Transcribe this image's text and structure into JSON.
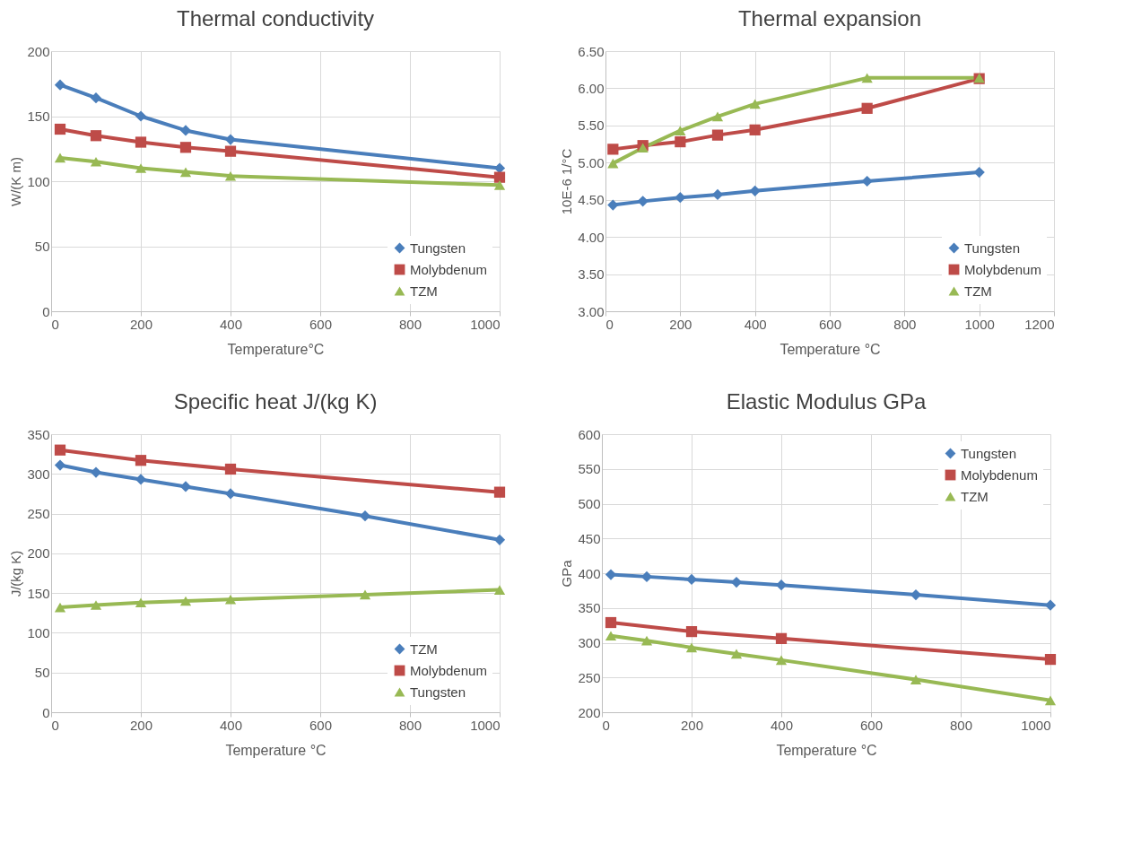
{
  "chart_data": [
    {
      "type": "line",
      "title": "Thermal conductivity",
      "xlabel": "Temperature°C",
      "ylabel": "W/(K m)",
      "xlim": [
        0,
        1000
      ],
      "xticks": [
        0,
        200,
        400,
        600,
        800,
        1000
      ],
      "ylim": [
        0,
        200
      ],
      "yticks": [
        0,
        50,
        100,
        150,
        200
      ],
      "grid": true,
      "legend": "bottom right",
      "line_style": "solid",
      "series": [
        {
          "name": "Tungsten",
          "color": "#4a7ebb",
          "marker": "diamond",
          "x": [
            20,
            100,
            200,
            300,
            400,
            1000
          ],
          "values": [
            174,
            164,
            150,
            139,
            132,
            110
          ]
        },
        {
          "name": "Molybdenum",
          "color": "#be4b48",
          "marker": "square",
          "x": [
            20,
            100,
            200,
            300,
            400,
            1000
          ],
          "values": [
            140,
            135,
            130,
            126,
            123,
            103
          ]
        },
        {
          "name": "TZM",
          "color": "#98b954",
          "marker": "triangle",
          "x": [
            20,
            100,
            200,
            300,
            400,
            1000
          ],
          "values": [
            118,
            115,
            110,
            107,
            104,
            97
          ]
        }
      ]
    },
    {
      "type": "line",
      "title": "Thermal expansion",
      "xlabel": "Temperature °C",
      "ylabel": "10E-6  1/°C",
      "xlim": [
        0,
        1200
      ],
      "xticks": [
        0,
        200,
        400,
        600,
        800,
        1000,
        1200
      ],
      "ylim": [
        3,
        6.5
      ],
      "yticks": [
        {
          "value": 3,
          "label": "3.00"
        },
        {
          "value": 3.5,
          "label": "3.50"
        },
        {
          "value": 4,
          "label": "4.00"
        },
        {
          "value": 4.5,
          "label": "4.50"
        },
        {
          "value": 5,
          "label": "5.00"
        },
        {
          "value": 5.5,
          "label": "5.50"
        },
        {
          "value": 6,
          "label": "6.00"
        },
        {
          "value": 6.5,
          "label": "6.50"
        }
      ],
      "grid": true,
      "legend": "bottom right",
      "line_style": "solid",
      "series": [
        {
          "name": "Tungsten",
          "color": "#4a7ebb",
          "marker": "diamond",
          "x": [
            20,
            100,
            200,
            300,
            400,
            700,
            1000
          ],
          "values": [
            4.43,
            4.48,
            4.53,
            4.57,
            4.62,
            4.75,
            4.87
          ]
        },
        {
          "name": "Molybdenum",
          "color": "#be4b48",
          "marker": "square",
          "x": [
            20,
            100,
            200,
            300,
            400,
            700,
            1000
          ],
          "values": [
            5.18,
            5.23,
            5.28,
            5.37,
            5.44,
            5.73,
            6.13
          ]
        },
        {
          "name": "TZM",
          "color": "#98b954",
          "marker": "triangle",
          "x": [
            20,
            100,
            200,
            300,
            400,
            700,
            1000
          ],
          "values": [
            4.99,
            5.2,
            5.43,
            5.62,
            5.79,
            6.14,
            6.14
          ]
        }
      ]
    },
    {
      "type": "line",
      "title": "Specific heat J/(kg K)",
      "xlabel": "Temperature °C",
      "ylabel": "J/(kg K)",
      "xlim": [
        0,
        1000
      ],
      "xticks": [
        0,
        200,
        400,
        600,
        800,
        1000
      ],
      "ylim": [
        0,
        350
      ],
      "yticks": [
        0,
        50,
        100,
        150,
        200,
        250,
        300,
        350
      ],
      "grid": true,
      "legend": "bottom right",
      "line_style": "solid",
      "series": [
        {
          "name": "TZM",
          "color": "#4a7ebb",
          "marker": "diamond",
          "x": [
            20,
            100,
            200,
            300,
            400,
            700,
            1000
          ],
          "values": [
            311,
            302,
            293,
            284,
            275,
            247,
            217
          ]
        },
        {
          "name": "Molybdenum",
          "color": "#be4b48",
          "marker": "square",
          "x": [
            20,
            200,
            400,
            1000
          ],
          "values": [
            330,
            317,
            306,
            277
          ]
        },
        {
          "name": "Tungsten",
          "color": "#98b954",
          "marker": "triangle",
          "x": [
            20,
            100,
            200,
            300,
            400,
            700,
            1000
          ],
          "values": [
            132,
            135,
            138,
            140,
            142,
            148,
            154
          ]
        }
      ]
    },
    {
      "type": "line",
      "title": "Elastic Modulus GPa",
      "xlabel": "Temperature °C",
      "ylabel": "GPa",
      "xlim": [
        0,
        1000
      ],
      "xticks": [
        0,
        200,
        400,
        600,
        800,
        1000
      ],
      "ylim": [
        200,
        600
      ],
      "yticks": [
        200,
        250,
        300,
        350,
        400,
        450,
        500,
        550,
        600
      ],
      "grid": true,
      "legend": "top right",
      "line_style": "solid",
      "series": [
        {
          "name": "Tungsten",
          "color": "#4a7ebb",
          "marker": "diamond",
          "x": [
            20,
            100,
            200,
            300,
            400,
            700,
            1000
          ],
          "values": [
            398,
            395,
            391,
            387,
            383,
            369,
            354
          ]
        },
        {
          "name": "Molybdenum",
          "color": "#be4b48",
          "marker": "square",
          "x": [
            20,
            200,
            400,
            1000
          ],
          "values": [
            329,
            316,
            306,
            276
          ]
        },
        {
          "name": "TZM",
          "color": "#98b954",
          "marker": "triangle",
          "x": [
            20,
            100,
            200,
            300,
            400,
            700,
            1000
          ],
          "values": [
            310,
            303,
            293,
            284,
            275,
            247,
            217
          ]
        }
      ]
    }
  ]
}
